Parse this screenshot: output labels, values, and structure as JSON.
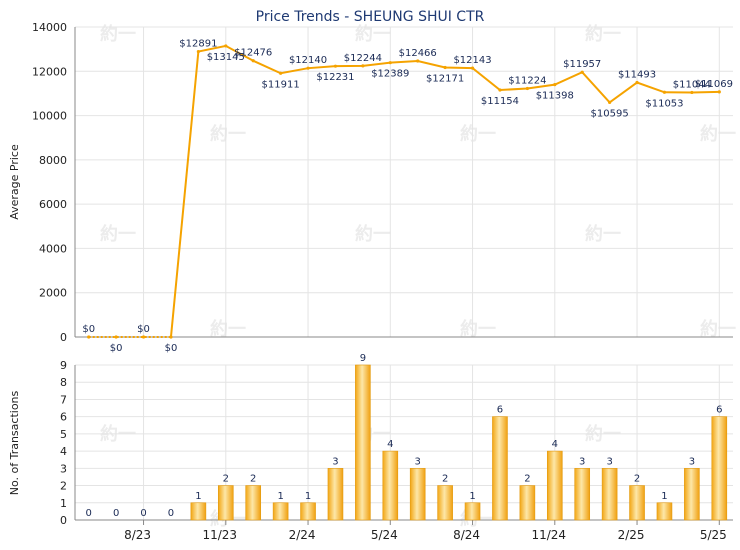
{
  "chart_data": [
    {
      "type": "line",
      "title": "Price Trends - SHEUNG SHUI CTR",
      "ylabel": "Average Price",
      "ylim": [
        0,
        14000
      ],
      "yticks": [
        0,
        2000,
        4000,
        6000,
        8000,
        10000,
        12000,
        14000
      ],
      "grid": true,
      "color": "#f5a300",
      "values": [
        0,
        0,
        0,
        0,
        12891,
        13145,
        12476,
        11911,
        12140,
        12231,
        12244,
        12389,
        12466,
        12171,
        12143,
        11154,
        11224,
        11398,
        11957,
        10595,
        11493,
        11053,
        11044,
        11069
      ],
      "labels": [
        "$0",
        "$0",
        "$0",
        "$0",
        "$12891",
        "$13145",
        "$12476",
        "$11911",
        "$12140",
        "$12231",
        "$12244",
        "$12389",
        "$12466",
        "$12171",
        "$12143",
        "$11154",
        "$11224",
        "$11398",
        "$11957",
        "$10595",
        "$11493",
        "$11053",
        "$11044",
        "$11069"
      ]
    },
    {
      "type": "bar",
      "ylabel": "No. of Transactions",
      "ylim": [
        0,
        9
      ],
      "yticks": [
        0,
        1,
        2,
        3,
        4,
        5,
        6,
        7,
        8,
        9
      ],
      "xticks": [
        "8/23",
        "11/23",
        "2/24",
        "5/24",
        "8/24",
        "11/24",
        "2/25",
        "5/25"
      ],
      "grid": true,
      "color": "#f3b32b",
      "values": [
        0,
        0,
        0,
        0,
        1,
        2,
        2,
        1,
        1,
        3,
        9,
        4,
        3,
        2,
        1,
        6,
        2,
        4,
        3,
        3,
        2,
        1,
        3,
        6
      ]
    }
  ],
  "watermark": "約一"
}
